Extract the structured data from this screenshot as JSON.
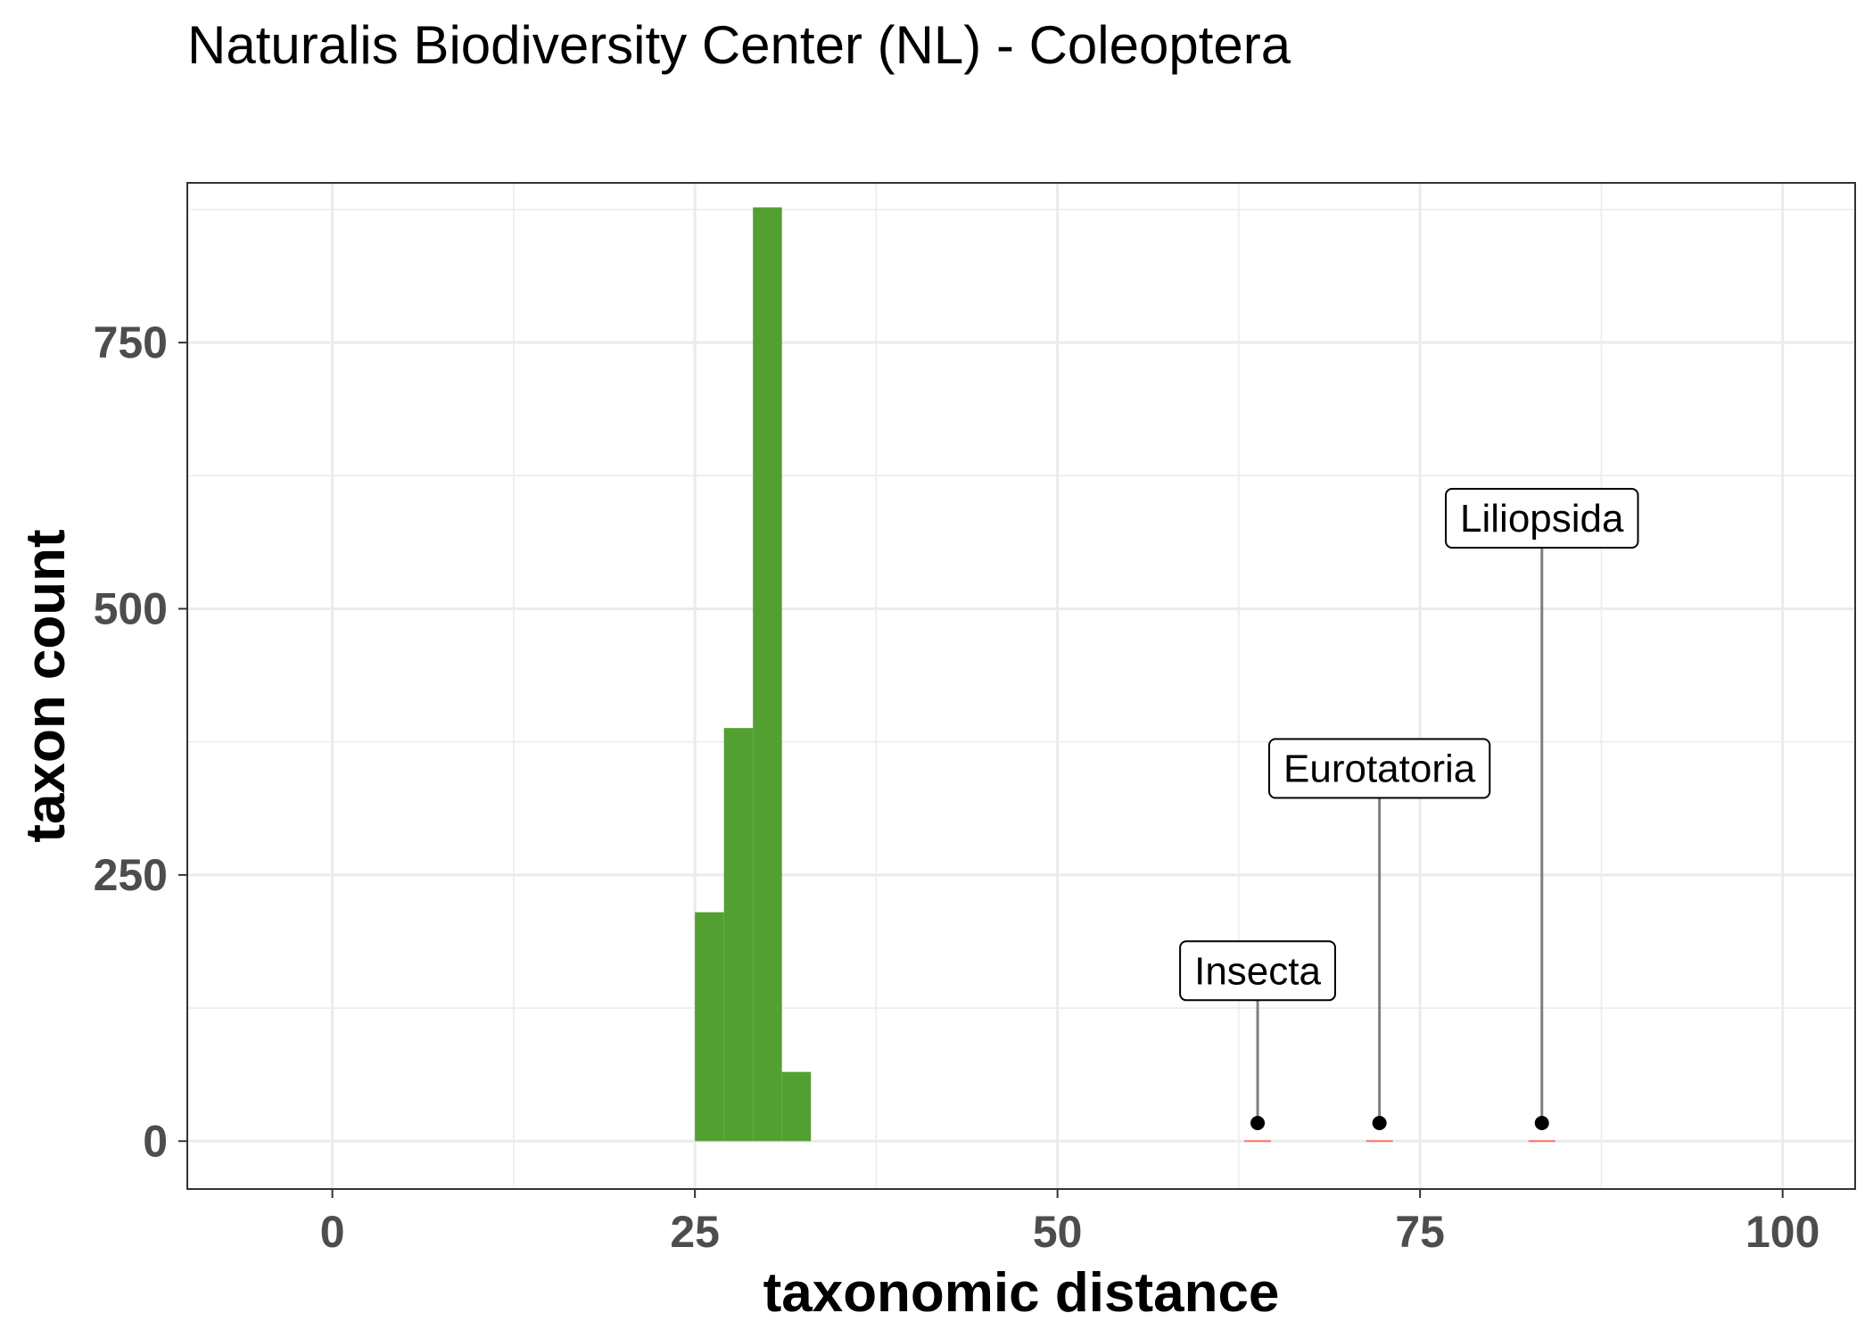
{
  "chart_data": {
    "type": "bar",
    "title": "Naturalis Biodiversity Center (NL) - Coleoptera",
    "xlabel": "taxonomic distance",
    "ylabel": "taxon count",
    "xlim": [
      -10,
      105
    ],
    "ylim": [
      -45,
      900
    ],
    "x_ticks": [
      0,
      25,
      50,
      75,
      100
    ],
    "y_ticks": [
      0,
      250,
      500,
      750
    ],
    "grid": true,
    "bar_color": "#53a032",
    "bin_width": 2,
    "bars": [
      {
        "x_start": 25,
        "x_end": 27,
        "count": 215
      },
      {
        "x_start": 27,
        "x_end": 29,
        "count": 388
      },
      {
        "x_start": 29,
        "x_end": 31,
        "count": 877
      },
      {
        "x_start": 31,
        "x_end": 33,
        "count": 65
      }
    ],
    "annotations": [
      {
        "label": "Insecta",
        "x": 63.8,
        "y": 17,
        "label_y": 160
      },
      {
        "label": "Eurotatoria",
        "x": 72.2,
        "y": 17,
        "label_y": 350
      },
      {
        "label": "Liliopsida",
        "x": 83.4,
        "y": 17,
        "label_y": 585
      }
    ]
  }
}
